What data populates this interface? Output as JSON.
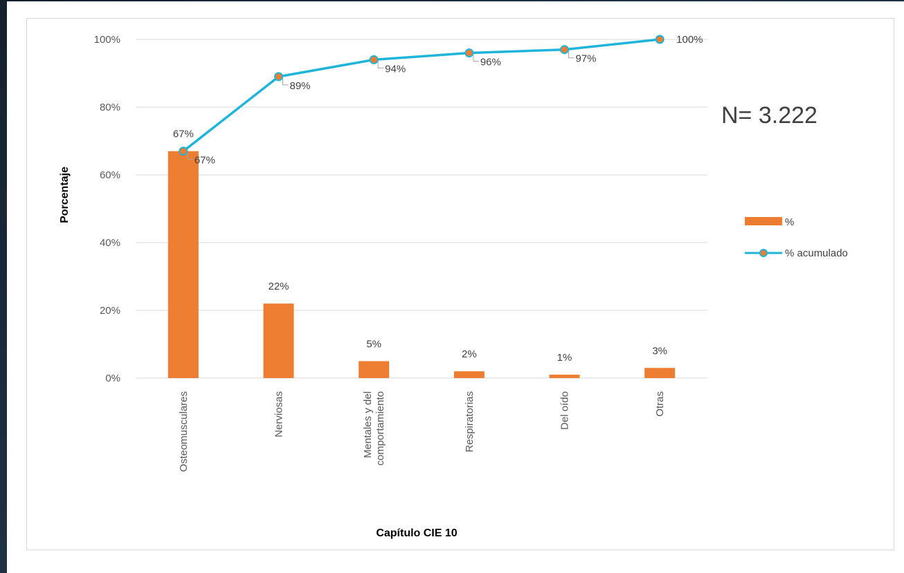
{
  "chart_data": {
    "type": "bar",
    "categories": [
      "Osteomusculares",
      "Nerviosas",
      "Mentales y del comportamiento",
      "Respiratorias",
      "Del oído",
      "Otras"
    ],
    "category_lines": [
      [
        "Osteomusculares"
      ],
      [
        "Nerviosas"
      ],
      [
        "Mentales y del",
        "comportamiento"
      ],
      [
        "Respiratorias"
      ],
      [
        "Del oído"
      ],
      [
        "Otras"
      ]
    ],
    "series": [
      {
        "name": "%",
        "type": "bar",
        "values": [
          67,
          22,
          5,
          2,
          1,
          3
        ],
        "labels": [
          "67%",
          "22%",
          "5%",
          "2%",
          "1%",
          "3%"
        ],
        "color": "#ed7d31"
      },
      {
        "name": "% acumulado",
        "type": "line",
        "values": [
          67,
          89,
          94,
          96,
          97,
          100
        ],
        "labels": [
          "67%",
          "89%",
          "94%",
          "96%",
          "97%",
          "100%"
        ],
        "color": "#1fb4d9",
        "marker_color": "#ed7d31"
      }
    ],
    "xlabel": "Capítulo CIE 10",
    "ylabel": "Porcentaje",
    "ylim": [
      0,
      100
    ],
    "yticks": [
      0,
      20,
      40,
      60,
      80,
      100
    ],
    "ytick_labels": [
      "0%",
      "20%",
      "40%",
      "60%",
      "80%",
      "100%"
    ],
    "grid": true,
    "legend_position": "right",
    "annotation": "N= 3.222"
  }
}
